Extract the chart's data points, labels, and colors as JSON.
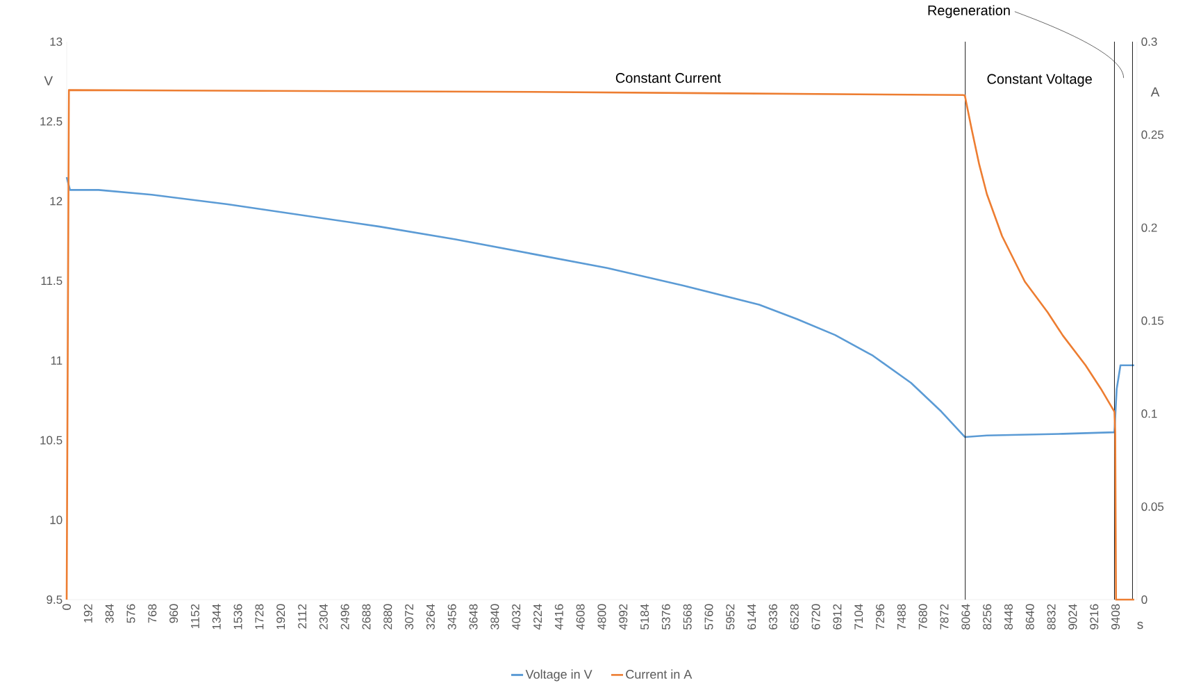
{
  "chart_data": {
    "type": "line",
    "xlabel": "s",
    "ylabel": "V",
    "y2label": "A",
    "xlim": [
      0,
      9600
    ],
    "xticks": [
      0,
      192,
      384,
      576,
      768,
      960,
      1152,
      1344,
      1536,
      1728,
      1920,
      2112,
      2304,
      2496,
      2688,
      2880,
      3072,
      3264,
      3456,
      3648,
      3840,
      4032,
      4224,
      4416,
      4608,
      4800,
      4992,
      5184,
      5376,
      5568,
      5760,
      5952,
      6144,
      6336,
      6528,
      6720,
      6912,
      7104,
      7296,
      7488,
      7680,
      7872,
      8064,
      8256,
      8448,
      8640,
      8832,
      9024,
      9216,
      9408
    ],
    "ylim": [
      9.5,
      13
    ],
    "yticks": [
      9.5,
      10,
      10.5,
      11,
      11.5,
      12,
      12.5,
      13
    ],
    "y2lim": [
      0,
      0.3
    ],
    "y2ticks": [
      0,
      0.05,
      0.1,
      0.15,
      0.2,
      0.25,
      0.3
    ],
    "legend": "bottom",
    "marker": "none",
    "line_style": "solid",
    "series": [
      {
        "name": "Voltage in V",
        "color": "#5b9bd5",
        "x": [
          0,
          30,
          286,
          763,
          1444,
          2125,
          2806,
          3487,
          4168,
          4849,
          5530,
          6211,
          6551,
          6892,
          7232,
          7573,
          7845,
          8056,
          8254,
          8935,
          9398,
          9418,
          9452,
          9575
        ],
        "values": [
          12.15,
          12.07,
          12.07,
          12.04,
          11.98,
          11.91,
          11.84,
          11.76,
          11.67,
          11.58,
          11.47,
          11.35,
          11.26,
          11.16,
          11.03,
          10.86,
          10.68,
          10.52,
          10.53,
          10.54,
          10.55,
          10.82,
          10.97,
          10.97
        ]
      },
      {
        "name": "Current in A",
        "color": "#ed7d31",
        "axis": "y2",
        "x": [
          0,
          20,
          4168,
          8040,
          8056,
          8117,
          8185,
          8254,
          8390,
          8594,
          8799,
          8935,
          9139,
          9275,
          9398,
          9405,
          9412,
          9575
        ],
        "values": [
          0,
          0.274,
          0.273,
          0.2713,
          0.271,
          0.253,
          0.234,
          0.218,
          0.1955,
          0.171,
          0.1545,
          0.142,
          0.126,
          0.1135,
          0.101,
          0.09,
          0,
          0
        ]
      }
    ],
    "ref_lines": [
      {
        "axis": "x",
        "value": 8060,
        "color": "#000000"
      },
      {
        "axis": "x",
        "value": 9398,
        "color": "#000000"
      },
      {
        "axis": "x",
        "value": 9560,
        "color": "#000000"
      }
    ],
    "annotations": [
      "Constant Current",
      "Constant Voltage",
      "Regeneration"
    ]
  }
}
